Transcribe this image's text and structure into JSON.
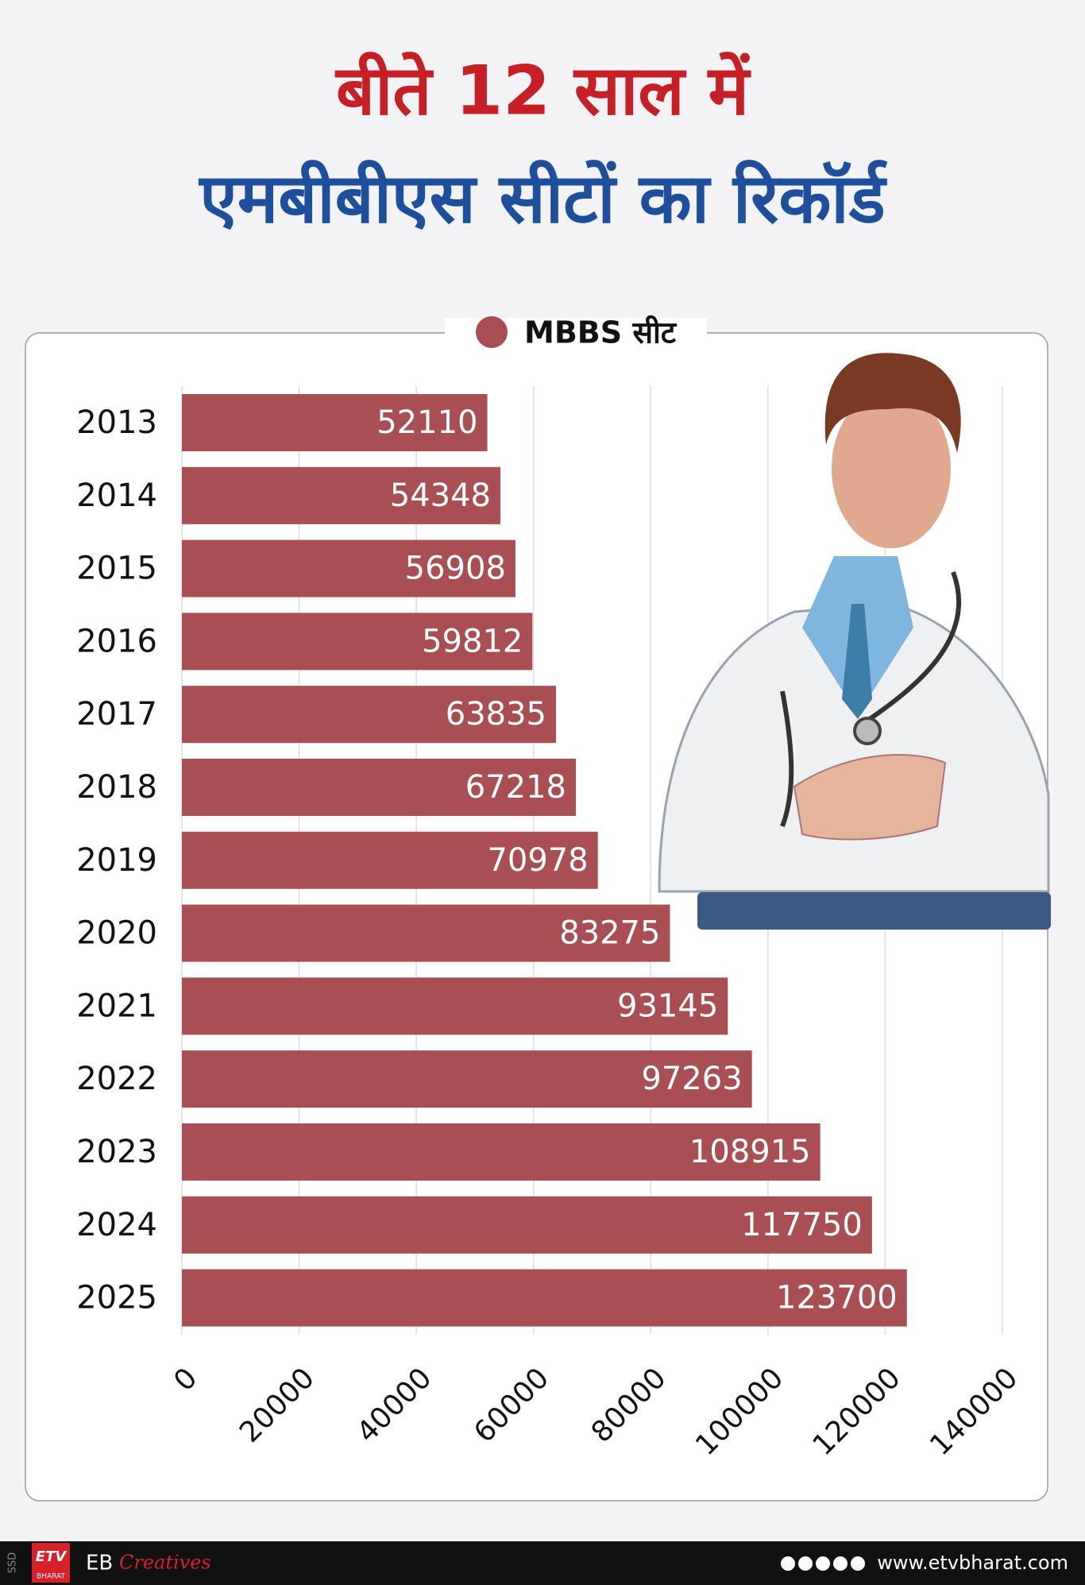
{
  "chart_data": {
    "type": "bar",
    "orientation": "horizontal",
    "title": "बीते 12 साल में",
    "subtitle": "एमबीबीएस सीटों का रिकॉर्ड",
    "legend": "MBBS सीट",
    "color": "#a94f53",
    "categories": [
      "2013",
      "2014",
      "2015",
      "2016",
      "2017",
      "2018",
      "2019",
      "2020",
      "2021",
      "2022",
      "2023",
      "2024",
      "2025"
    ],
    "values": [
      52110,
      54348,
      56908,
      59812,
      63835,
      67218,
      70978,
      83275,
      93145,
      97263,
      108915,
      117750,
      123700
    ],
    "xlim": [
      0,
      140000
    ],
    "xticks": [
      0,
      20000,
      40000,
      60000,
      80000,
      100000,
      120000,
      140000
    ],
    "grid": true
  },
  "footer": {
    "side": "SSD",
    "logo": "ETV",
    "logo_sub": "BHARAT",
    "brand": "EB",
    "brand_script": "Creatives",
    "site": "www.etvbharat.com"
  }
}
